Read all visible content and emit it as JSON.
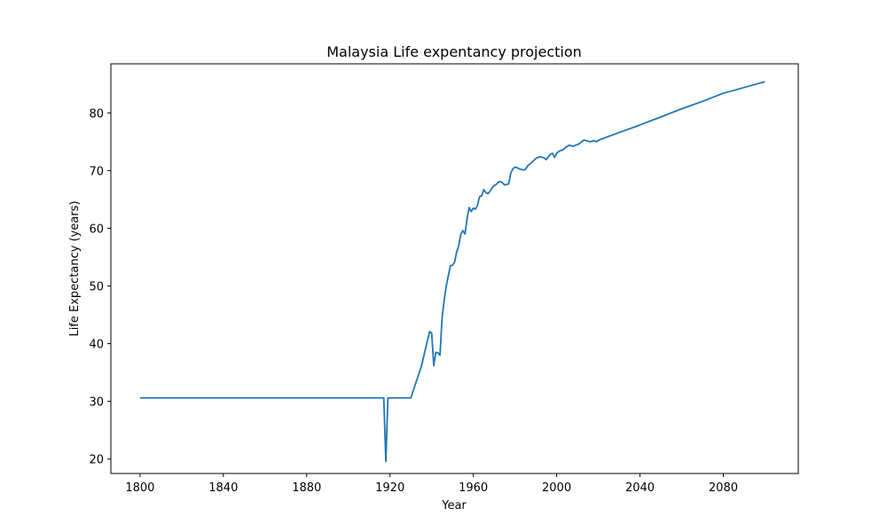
{
  "chart_data": {
    "type": "line",
    "title": "Malaysia Life expentancy projection",
    "xlabel": "Year",
    "ylabel": "Life Expectancy (years)",
    "xlim": [
      1786,
      2116
    ],
    "ylim": [
      17.5,
      88.5
    ],
    "xticks": [
      1800,
      1840,
      1880,
      1920,
      1960,
      2000,
      2040,
      2080
    ],
    "yticks": [
      20,
      30,
      40,
      50,
      60,
      70,
      80
    ],
    "grid": false,
    "legend": "none",
    "line_color": "#1f77b4",
    "series": [
      {
        "x": [
          1800,
          1917,
          1918,
          1919,
          1930,
          1935,
          1939,
          1940,
          1941,
          1942,
          1943,
          1944,
          1945,
          1946,
          1947,
          1948,
          1949,
          1950,
          1951,
          1952,
          1953,
          1954,
          1955,
          1956,
          1957,
          1958,
          1959,
          1960,
          1961,
          1962,
          1963,
          1964,
          1965,
          1966,
          1967,
          1968,
          1969,
          1970,
          1971,
          1972,
          1973,
          1974,
          1975,
          1976,
          1977,
          1978,
          1979,
          1980,
          1981,
          1982,
          1983,
          1984,
          1985,
          1986,
          1988,
          1990,
          1992,
          1993,
          1994,
          1995,
          1996,
          1997,
          1998,
          1999,
          2000,
          2001,
          2002,
          2003,
          2004,
          2005,
          2006,
          2007,
          2008,
          2009,
          2010,
          2011,
          2012,
          2013,
          2014,
          2015,
          2016,
          2017,
          2018,
          2019,
          2020,
          2021,
          2030,
          2040,
          2050,
          2060,
          2070,
          2080,
          2090,
          2100
        ],
        "y": [
          30.6,
          30.6,
          19.6,
          30.6,
          30.6,
          36,
          42.1,
          41.8,
          36.2,
          38.5,
          38.4,
          38.0,
          44.5,
          47.5,
          50.0,
          51.8,
          53.5,
          53.6,
          54.1,
          55.9,
          57.0,
          59.0,
          59.6,
          59.0,
          61.7,
          63.6,
          62.9,
          63.5,
          63.3,
          64.0,
          65.5,
          65.6,
          66.7,
          66.2,
          66.0,
          66.4,
          67.0,
          67.4,
          67.6,
          68.0,
          68.1,
          67.9,
          67.5,
          67.6,
          67.7,
          69.6,
          70.3,
          70.6,
          70.5,
          70.3,
          70.2,
          70.1,
          70.2,
          70.8,
          71.4,
          72.1,
          72.4,
          72.3,
          72.2,
          71.9,
          72.4,
          72.8,
          73.0,
          72.3,
          73.0,
          73.3,
          73.5,
          73.6,
          73.9,
          74.2,
          74.4,
          74.3,
          74.2,
          74.4,
          74.5,
          74.7,
          75.0,
          75.3,
          75.2,
          75.1,
          75.0,
          75.1,
          75.2,
          75.0,
          75.2,
          75.4,
          76.6,
          77.9,
          79.3,
          80.7,
          82.0,
          83.4,
          84.4,
          85.4
        ]
      }
    ]
  }
}
